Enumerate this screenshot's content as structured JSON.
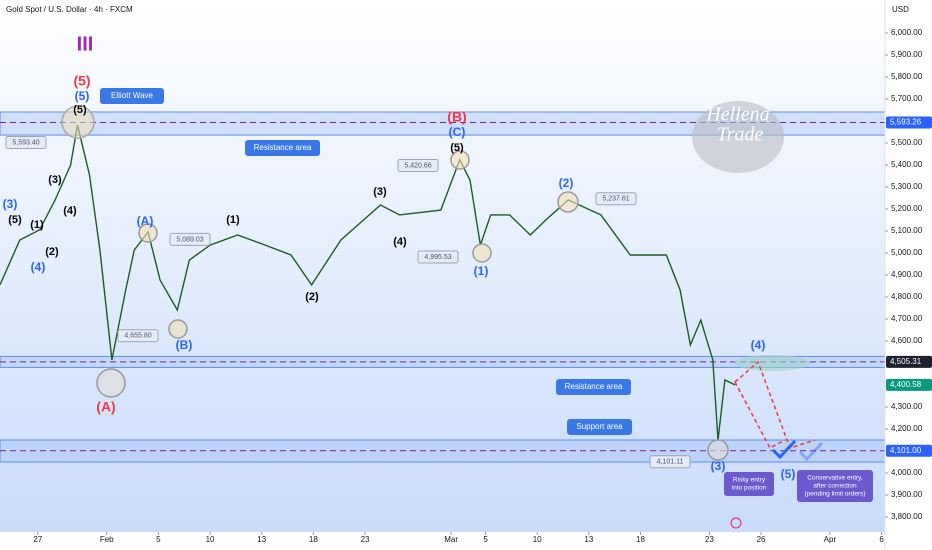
{
  "header": {
    "title": "Gold Spot / U.S. Dollar · 4h · FXCM",
    "currency": "USD"
  },
  "chart_data": {
    "type": "line",
    "color": "#1b5e20",
    "x": [
      -2.2,
      -1.05,
      0.1,
      1.0,
      1.9,
      2.3,
      3.0,
      3.6,
      4.3,
      5.1,
      5.6,
      6.4,
      7.1,
      8.1,
      8.8,
      10.0,
      11.6,
      13.2,
      14.7,
      15.9,
      17.6,
      19.9,
      21.0,
      23.4,
      24.5,
      25.1,
      25.7,
      26.3,
      27.4,
      28.6,
      29.5,
      30.8,
      32.7,
      34.4,
      36.5,
      37.3,
      37.9,
      38.5,
      39.2,
      39.5,
      39.9,
      40.5
    ],
    "values": [
      4855,
      5059,
      5105,
      5241,
      5400,
      5582,
      5355,
      5014,
      4514,
      4832,
      5014,
      5095,
      4877,
      4741,
      4968,
      5036,
      5082,
      5036,
      4991,
      4855,
      5059,
      5218,
      5173,
      5195,
      5423,
      5332,
      5036,
      5173,
      5173,
      5082,
      5150,
      5241,
      5173,
      4991,
      4991,
      4832,
      4582,
      4695,
      4514,
      4150,
      4423,
      4400
    ],
    "xlim": [
      -2.2,
      49.2
    ],
    "xticks": [
      {
        "value": 0,
        "label": "27"
      },
      {
        "value": 4,
        "label": "Feb"
      },
      {
        "value": 7,
        "label": "5"
      },
      {
        "value": 10,
        "label": "10"
      },
      {
        "value": 13,
        "label": "13"
      },
      {
        "value": 16,
        "label": "18"
      },
      {
        "value": 19,
        "label": "23"
      },
      {
        "value": 24,
        "label": "Mar"
      },
      {
        "value": 26,
        "label": "5"
      },
      {
        "value": 29,
        "label": "10"
      },
      {
        "value": 32,
        "label": "13"
      },
      {
        "value": 35,
        "label": "18"
      },
      {
        "value": 39,
        "label": "23"
      },
      {
        "value": 42,
        "label": "26"
      },
      {
        "value": 46,
        "label": "Apr"
      },
      {
        "value": 49,
        "label": "6"
      }
    ],
    "ylim": [
      3750,
      6050
    ],
    "yticks": [
      {
        "value": 6000,
        "label": "6,000.00"
      },
      {
        "value": 5900,
        "label": "5,900.00"
      },
      {
        "value": 5800,
        "label": "5,800.00"
      },
      {
        "value": 5700,
        "label": "5,700.00"
      },
      {
        "value": 5500,
        "label": "5,500.00"
      },
      {
        "value": 5400,
        "label": "5,400.00"
      },
      {
        "value": 5300,
        "label": "5,300.00"
      },
      {
        "value": 5200,
        "label": "5,200.00"
      },
      {
        "value": 5100,
        "label": "5,100.00"
      },
      {
        "value": 5000,
        "label": "5,000.00"
      },
      {
        "value": 4900,
        "label": "4,900.00"
      },
      {
        "value": 4800,
        "label": "4,800.00"
      },
      {
        "value": 4700,
        "label": "4,700.00"
      },
      {
        "value": 4600,
        "label": "4,600.00"
      },
      {
        "value": 4300,
        "label": "4,300.00"
      },
      {
        "value": 4200,
        "label": "4,200.00"
      },
      {
        "value": 4000,
        "label": "4,000.00"
      },
      {
        "value": 3900,
        "label": "3,900.00"
      },
      {
        "value": 3800,
        "label": "3,800.00"
      }
    ],
    "price_markers": [
      {
        "value": 5593.26,
        "label": "5,593.26",
        "color": "#2962ff"
      },
      {
        "value": 4505.31,
        "label": "4,505.31",
        "color": "#1e2230"
      },
      {
        "value": 4400.58,
        "label": "4,400.58",
        "color": "#089981"
      },
      {
        "value": 4101.0,
        "label": "4,101.00",
        "color": "#2962ff"
      }
    ],
    "zones": [
      {
        "range": [
          5536,
          5641
        ]
      },
      {
        "range": [
          4480,
          4530
        ]
      },
      {
        "range": [
          4050,
          4150
        ]
      }
    ],
    "point_labels": [
      {
        "value": 5593.4,
        "label": "5,593.40"
      },
      {
        "value": 5420.66,
        "label": "5,420.66"
      },
      {
        "value": 5089.03,
        "label": "5,089.03"
      },
      {
        "value": 4995.53,
        "label": "4,995.53"
      },
      {
        "value": 4655.8,
        "label": "4,655.80"
      },
      {
        "value": 5237.61,
        "label": "5,237.61"
      },
      {
        "value": 4101.11,
        "label": "4,101.11"
      }
    ],
    "wave_labels": [
      "III",
      "(5)",
      "(5)",
      "(5)",
      "(3)",
      "(4)",
      "(3)",
      "(5)",
      "(1)",
      "(2)",
      "(4)",
      "(A)",
      "(A)",
      "(B)",
      "(1)",
      "(2)",
      "(3)",
      "(4)",
      "(B)",
      "(C)",
      "(5)",
      "(1)",
      "(2)",
      "(4)",
      "(3)",
      "(5)"
    ],
    "notes": [
      "Elliott Wave",
      "Resistance area",
      "Resistance area",
      "Support area"
    ],
    "entry_notes": [
      [
        "Risky entry",
        "into position"
      ],
      [
        "Conservative entry,",
        "after correction",
        "(pending limit orders)"
      ]
    ],
    "watermark": [
      "Hellena",
      "Trade"
    ]
  }
}
